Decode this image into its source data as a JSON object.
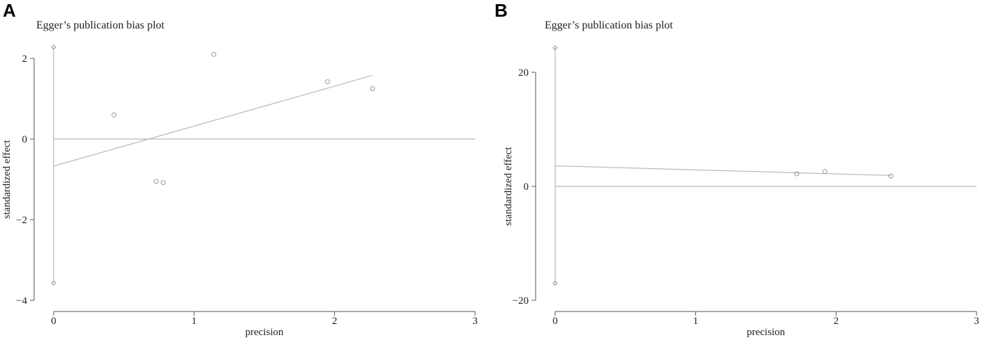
{
  "panels": [
    {
      "letter": "A",
      "title": "Egger’s publication bias plot"
    },
    {
      "letter": "B",
      "title": "Egger’s publication bias plot"
    }
  ],
  "chart_data": [
    {
      "type": "scatter",
      "title": "Egger’s publication bias plot",
      "xlabel": "precision",
      "ylabel": "standardized effect",
      "xlim": [
        0,
        3
      ],
      "ylim": [
        -4,
        2
      ],
      "xticks": [
        0,
        1,
        2,
        3
      ],
      "yticks": [
        -4,
        -2,
        0,
        2
      ],
      "ytick_labels": [
        "−4",
        "−2",
        "0",
        "2"
      ],
      "points": [
        {
          "x": 0.43,
          "y": 0.6
        },
        {
          "x": 0.73,
          "y": -1.05
        },
        {
          "x": 0.78,
          "y": -1.08
        },
        {
          "x": 1.14,
          "y": 2.1
        },
        {
          "x": 1.95,
          "y": 1.42
        },
        {
          "x": 2.27,
          "y": 1.25
        }
      ],
      "regression_line": {
        "x": [
          0,
          2.27
        ],
        "y": [
          -0.67,
          1.58
        ]
      },
      "zero_line": 0,
      "intercept_ci": {
        "x": 0,
        "low": -3.57,
        "high": 2.28
      },
      "grid": false
    },
    {
      "type": "scatter",
      "title": "Egger’s publication bias plot",
      "xlabel": "precision",
      "ylabel": "standardized effect",
      "xlim": [
        0,
        3
      ],
      "ylim": [
        -20,
        20
      ],
      "xticks": [
        0,
        1,
        2,
        3
      ],
      "yticks": [
        -20,
        0,
        20
      ],
      "ytick_labels": [
        "−20",
        "0",
        "20"
      ],
      "points": [
        {
          "x": 1.72,
          "y": 2.2
        },
        {
          "x": 1.92,
          "y": 2.6
        },
        {
          "x": 2.39,
          "y": 1.8
        }
      ],
      "regression_line": {
        "x": [
          0,
          2.39
        ],
        "y": [
          3.6,
          1.9
        ]
      },
      "zero_line": 0,
      "intercept_ci": {
        "x": 0,
        "low": -17.0,
        "high": 24.3
      },
      "grid": false
    }
  ]
}
